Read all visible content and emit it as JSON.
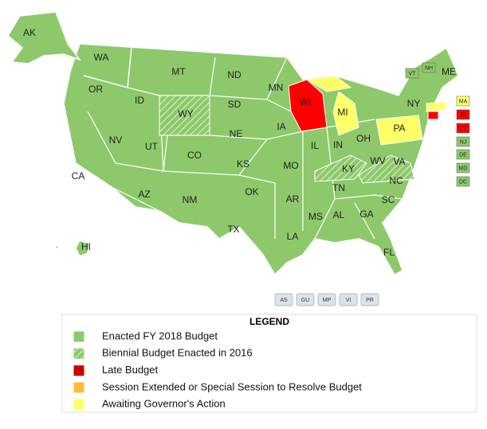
{
  "map": {
    "states": [
      {
        "label": "AK",
        "color": "#8dc96b"
      },
      {
        "label": "WA",
        "color": "#8dc96b"
      },
      {
        "label": "OR",
        "color": "#8dc96b"
      },
      {
        "label": "CA",
        "color": "#8dc96b"
      },
      {
        "label": "ID",
        "color": "#8dc96b"
      },
      {
        "label": "NV",
        "color": "#8dc96b"
      },
      {
        "label": "MT",
        "color": "#8dc96b"
      },
      {
        "label": "WY",
        "color": "#8dc96b",
        "hatched": true
      },
      {
        "label": "UT",
        "color": "#8dc96b"
      },
      {
        "label": "AZ",
        "color": "#8dc96b"
      },
      {
        "label": "CO",
        "color": "#8dc96b"
      },
      {
        "label": "NM",
        "color": "#8dc96b"
      },
      {
        "label": "ND",
        "color": "#8dc96b"
      },
      {
        "label": "SD",
        "color": "#8dc96b"
      },
      {
        "label": "NE",
        "color": "#8dc96b"
      },
      {
        "label": "KS",
        "color": "#8dc96b"
      },
      {
        "label": "OK",
        "color": "#8dc96b"
      },
      {
        "label": "TX",
        "color": "#8dc96b"
      },
      {
        "label": "MN",
        "color": "#8dc96b"
      },
      {
        "label": "IA",
        "color": "#8dc96b"
      },
      {
        "label": "MO",
        "color": "#8dc96b"
      },
      {
        "label": "AR",
        "color": "#8dc96b"
      },
      {
        "label": "LA",
        "color": "#8dc96b"
      },
      {
        "label": "WI",
        "color": "#ff0000"
      },
      {
        "label": "IL",
        "color": "#8dc96b"
      },
      {
        "label": "MI",
        "color": "#ffff66"
      },
      {
        "label": "IN",
        "color": "#8dc96b"
      },
      {
        "label": "OH",
        "color": "#8dc96b"
      },
      {
        "label": "KY",
        "color": "#8dc96b",
        "hatched": true
      },
      {
        "label": "TN",
        "color": "#8dc96b"
      },
      {
        "label": "MS",
        "color": "#8dc96b"
      },
      {
        "label": "AL",
        "color": "#8dc96b"
      },
      {
        "label": "GA",
        "color": "#8dc96b"
      },
      {
        "label": "FL",
        "color": "#8dc96b"
      },
      {
        "label": "SC",
        "color": "#8dc96b"
      },
      {
        "label": "NC",
        "color": "#8dc96b"
      },
      {
        "label": "VA",
        "color": "#8dc96b",
        "hatched": true
      },
      {
        "label": "WV",
        "color": "#8dc96b"
      },
      {
        "label": "PA",
        "color": "#ffff66"
      },
      {
        "label": "NY",
        "color": "#8dc96b"
      },
      {
        "label": "ME",
        "color": "#8dc96b"
      },
      {
        "label": "HI",
        "color": "#8dc96b"
      },
      {
        "label": "VT",
        "color": "#8dc96b"
      },
      {
        "label": "NH",
        "color": "#8dc96b"
      },
      {
        "label": "MA",
        "color": "#ffff66"
      },
      {
        "label": "RI",
        "color": "#ff0000"
      },
      {
        "label": "CT",
        "color": "#ff0000"
      },
      {
        "label": "NJ",
        "color": "#8dc96b"
      },
      {
        "label": "DE",
        "color": "#8dc96b"
      },
      {
        "label": "MD",
        "color": "#8dc96b"
      },
      {
        "label": "DC",
        "color": "#8dc96b"
      }
    ],
    "territories": [
      "AS",
      "GU",
      "MP",
      "VI",
      "PR"
    ],
    "legend": {
      "title": "LEGEND",
      "items": [
        {
          "label": "Enacted FY 2018 Budget",
          "color": "#8dc96b"
        },
        {
          "label": "Biennial Budget Enacted in 2016",
          "color": "#8dc96b",
          "hatched": true
        },
        {
          "label": "Late Budget",
          "color": "#cc0000"
        },
        {
          "label": "Session Extended or Special Session to Resolve Budget",
          "color": "#ffbb33"
        },
        {
          "label": "Awaiting Governor's Action",
          "color": "#ffff66"
        }
      ]
    }
  }
}
